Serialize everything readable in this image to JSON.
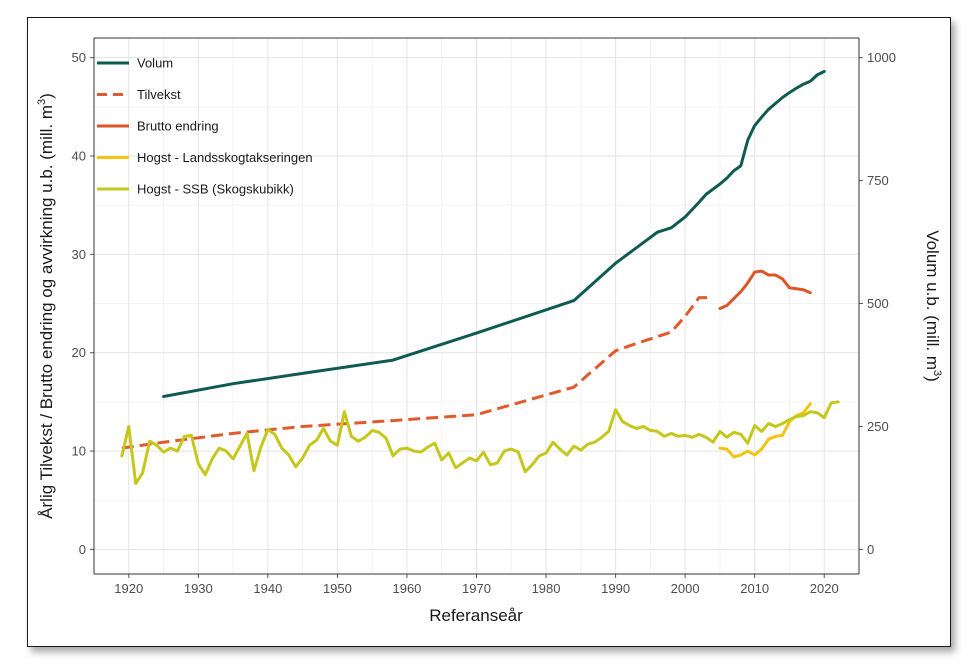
{
  "chart_data": {
    "type": "line",
    "xlabel": "Referanseår",
    "ylabel_left": [
      "Årlig Tilvekst  /  Brutto endring og avvirkning u.b. (mill. m",
      "3",
      ")"
    ],
    "ylabel_right": [
      "Volum u.b. (mill. m",
      "3",
      ")"
    ],
    "xlim": [
      1915,
      2025
    ],
    "ylim_left": [
      -2.5,
      52
    ],
    "ylim_right": [
      -50,
      1040
    ],
    "x_ticks": [
      "1920",
      "1930",
      "1940",
      "1950",
      "1960",
      "1970",
      "1980",
      "1990",
      "2000",
      "2010",
      "2020"
    ],
    "y_ticks_left": [
      "0",
      "10",
      "20",
      "30",
      "40",
      "50"
    ],
    "y_ticks_right": [
      "0",
      "250",
      "500",
      "750",
      "1000"
    ],
    "grid": true,
    "legend_position": "top-left",
    "series": [
      {
        "name": "Volum",
        "axis": "right",
        "color": "#0f5b52",
        "dash": "solid",
        "points": [
          [
            1925,
            311
          ],
          [
            1935,
            337
          ],
          [
            1945,
            358
          ],
          [
            1958,
            385
          ],
          [
            1970,
            440
          ],
          [
            1984,
            506
          ],
          [
            1990,
            582
          ],
          [
            1996,
            645
          ],
          [
            1998,
            654
          ],
          [
            2000,
            676
          ],
          [
            2002,
            706
          ],
          [
            2003,
            722
          ],
          [
            2005,
            743
          ],
          [
            2006,
            755
          ],
          [
            2007,
            770
          ],
          [
            2008,
            780
          ],
          [
            2009,
            832
          ],
          [
            2010,
            862
          ],
          [
            2011,
            879
          ],
          [
            2012,
            895
          ],
          [
            2013,
            907
          ],
          [
            2014,
            919
          ],
          [
            2015,
            929
          ],
          [
            2016,
            938
          ],
          [
            2017,
            946
          ],
          [
            2018,
            952
          ],
          [
            2019,
            965
          ],
          [
            2020,
            972
          ]
        ]
      },
      {
        "name": "Tilvekst",
        "axis": "left",
        "color": "#e05a2b",
        "dash": "dashed",
        "points": [
          [
            1919,
            10.3
          ],
          [
            1925,
            10.9
          ],
          [
            1935,
            11.8
          ],
          [
            1945,
            12.5
          ],
          [
            1958,
            13.1
          ],
          [
            1970,
            13.7
          ],
          [
            1984,
            16.5
          ],
          [
            1990,
            20.2
          ],
          [
            1992,
            20.7
          ],
          [
            1995,
            21.4
          ],
          [
            1998,
            22.1
          ],
          [
            2000,
            23.7
          ],
          [
            2002,
            25.6
          ],
          [
            2004,
            25.6
          ]
        ]
      },
      {
        "name": "Brutto endring",
        "axis": "left",
        "color": "#dc5529",
        "dash": "solid",
        "points": [
          [
            2005,
            24.5
          ],
          [
            2006,
            24.8
          ],
          [
            2007,
            25.5
          ],
          [
            2008,
            26.2
          ],
          [
            2009,
            27.1
          ],
          [
            2010,
            28.2
          ],
          [
            2011,
            28.3
          ],
          [
            2012,
            27.9
          ],
          [
            2013,
            27.9
          ],
          [
            2014,
            27.5
          ],
          [
            2015,
            26.6
          ],
          [
            2016,
            26.5
          ],
          [
            2017,
            26.4
          ],
          [
            2018,
            26.1
          ]
        ]
      },
      {
        "name": "Hogst - Landsskogtakseringen",
        "axis": "left",
        "color": "#f2c413",
        "dash": "solid",
        "points": [
          [
            2005,
            10.3
          ],
          [
            2006,
            10.2
          ],
          [
            2007,
            9.4
          ],
          [
            2008,
            9.6
          ],
          [
            2009,
            10.0
          ],
          [
            2010,
            9.6
          ],
          [
            2011,
            10.2
          ],
          [
            2012,
            11.2
          ],
          [
            2013,
            11.5
          ],
          [
            2014,
            11.6
          ],
          [
            2015,
            13.0
          ],
          [
            2016,
            13.6
          ],
          [
            2017,
            13.9
          ],
          [
            2018,
            14.8
          ]
        ]
      },
      {
        "name": "Hogst - SSB (Skogskubikk)",
        "axis": "left",
        "color": "#c6c71c",
        "dash": "solid",
        "points": [
          [
            1919,
            9.5
          ],
          [
            1920,
            12.5
          ],
          [
            1921,
            6.7
          ],
          [
            1922,
            7.8
          ],
          [
            1923,
            11.0
          ],
          [
            1924,
            10.6
          ],
          [
            1925,
            9.9
          ],
          [
            1926,
            10.3
          ],
          [
            1927,
            10.0
          ],
          [
            1928,
            11.5
          ],
          [
            1929,
            11.6
          ],
          [
            1930,
            8.7
          ],
          [
            1931,
            7.6
          ],
          [
            1932,
            9.2
          ],
          [
            1933,
            10.3
          ],
          [
            1934,
            10.0
          ],
          [
            1935,
            9.2
          ],
          [
            1936,
            10.5
          ],
          [
            1937,
            11.8
          ],
          [
            1938,
            8.0
          ],
          [
            1939,
            10.4
          ],
          [
            1940,
            12.2
          ],
          [
            1941,
            11.7
          ],
          [
            1942,
            10.3
          ],
          [
            1943,
            9.6
          ],
          [
            1944,
            8.4
          ],
          [
            1945,
            9.3
          ],
          [
            1946,
            10.6
          ],
          [
            1947,
            11.1
          ],
          [
            1948,
            12.3
          ],
          [
            1949,
            11.0
          ],
          [
            1950,
            10.6
          ],
          [
            1951,
            14.0
          ],
          [
            1952,
            11.5
          ],
          [
            1953,
            11.0
          ],
          [
            1954,
            11.4
          ],
          [
            1955,
            12.1
          ],
          [
            1956,
            11.9
          ],
          [
            1957,
            11.3
          ],
          [
            1958,
            9.5
          ],
          [
            1959,
            10.2
          ],
          [
            1960,
            10.3
          ],
          [
            1961,
            10.0
          ],
          [
            1962,
            9.9
          ],
          [
            1963,
            10.4
          ],
          [
            1964,
            10.8
          ],
          [
            1965,
            9.1
          ],
          [
            1966,
            9.8
          ],
          [
            1967,
            8.3
          ],
          [
            1968,
            8.8
          ],
          [
            1969,
            9.3
          ],
          [
            1970,
            9.0
          ],
          [
            1971,
            9.9
          ],
          [
            1972,
            8.6
          ],
          [
            1973,
            8.8
          ],
          [
            1974,
            10.0
          ],
          [
            1975,
            10.2
          ],
          [
            1976,
            9.9
          ],
          [
            1977,
            7.9
          ],
          [
            1978,
            8.6
          ],
          [
            1979,
            9.5
          ],
          [
            1980,
            9.8
          ],
          [
            1981,
            10.9
          ],
          [
            1982,
            10.2
          ],
          [
            1983,
            9.6
          ],
          [
            1984,
            10.5
          ],
          [
            1985,
            10.1
          ],
          [
            1986,
            10.7
          ],
          [
            1987,
            10.9
          ],
          [
            1988,
            11.4
          ],
          [
            1989,
            12.0
          ],
          [
            1990,
            14.2
          ],
          [
            1991,
            13.0
          ],
          [
            1992,
            12.6
          ],
          [
            1993,
            12.3
          ],
          [
            1994,
            12.5
          ],
          [
            1995,
            12.1
          ],
          [
            1996,
            12.0
          ],
          [
            1997,
            11.5
          ],
          [
            1998,
            11.8
          ],
          [
            1999,
            11.5
          ],
          [
            2000,
            11.6
          ],
          [
            2001,
            11.4
          ],
          [
            2002,
            11.7
          ],
          [
            2003,
            11.4
          ],
          [
            2004,
            10.9
          ],
          [
            2005,
            12.0
          ],
          [
            2006,
            11.4
          ],
          [
            2007,
            11.9
          ],
          [
            2008,
            11.7
          ],
          [
            2009,
            10.8
          ],
          [
            2010,
            12.6
          ],
          [
            2011,
            12.0
          ],
          [
            2012,
            12.8
          ],
          [
            2013,
            12.5
          ],
          [
            2014,
            12.8
          ],
          [
            2015,
            13.2
          ],
          [
            2016,
            13.5
          ],
          [
            2017,
            13.6
          ],
          [
            2018,
            14.0
          ],
          [
            2019,
            13.9
          ],
          [
            2020,
            13.4
          ],
          [
            2021,
            14.9
          ],
          [
            2022,
            15.0
          ]
        ]
      }
    ]
  }
}
